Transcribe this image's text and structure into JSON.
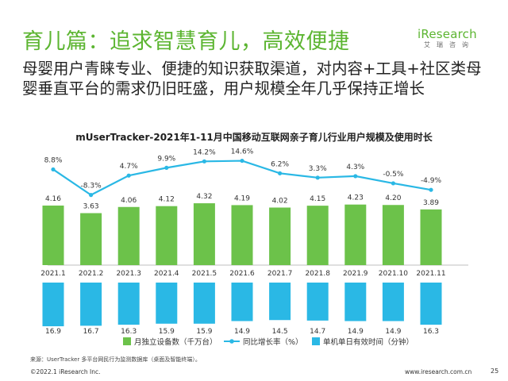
{
  "header": {
    "title": "育儿篇：追求智慧育儿，高效便捷",
    "subtitle": "母婴用户青睐专业、便捷的知识获取渠道，对内容+工具+社区类母婴垂直平台的需求仍旧旺盛，用户规模全年几乎保持正增长"
  },
  "logo": {
    "brand": "iResearch",
    "sub": "艾瑞咨询"
  },
  "chart_data": {
    "type": "bar",
    "title": "mUserTracker-2021年1-11月中国移动互联网亲子育儿行业用户规模及使用时长",
    "categories": [
      "2021.1",
      "2021.2",
      "2021.3",
      "2021.4",
      "2021.5",
      "2021.6",
      "2021.7",
      "2021.8",
      "2021.9",
      "2021.10",
      "2021.11"
    ],
    "series": [
      {
        "name": "月独立设备数（千万台）",
        "type": "bar",
        "color": "#6cc24a",
        "values": [
          4.16,
          3.63,
          4.06,
          4.12,
          4.32,
          4.19,
          4.02,
          4.15,
          4.23,
          4.2,
          3.89
        ],
        "labels": [
          "4.16",
          "3.63",
          "4.06",
          "4.12",
          "4.32",
          "4.19",
          "4.02",
          "4.15",
          "4.23",
          "4.20",
          "3.89"
        ]
      },
      {
        "name": "同比增长率（%）",
        "type": "line",
        "color": "#2ab8e5",
        "values": [
          8.8,
          -8.3,
          4.7,
          9.9,
          14.2,
          14.6,
          6.2,
          3.3,
          4.3,
          -0.5,
          -4.9
        ],
        "labels": [
          "8.8%",
          "-8.3%",
          "4.7%",
          "9.9%",
          "14.2%",
          "14.6%",
          "6.2%",
          "3.3%",
          "4.3%",
          "-0.5%",
          "-4.9%"
        ]
      },
      {
        "name": "单机单日有效时间（分钟）",
        "type": "bar",
        "color": "#2ab8e5",
        "values": [
          16.9,
          16.7,
          16.3,
          15.9,
          15.9,
          14.9,
          14.5,
          14.7,
          14.9,
          14.9,
          16.3
        ],
        "labels": [
          "16.9",
          "16.7",
          "16.3",
          "15.9",
          "15.9",
          "14.9",
          "14.5",
          "14.7",
          "14.9",
          "14.9",
          "16.3"
        ]
      }
    ],
    "legend_position": "bottom",
    "grid": false
  },
  "footer": {
    "source": "来源：UserTracker 多平台网民行为监测数据库（桌面及智能终端）。",
    "copyright": "©2022.1 iResearch Inc.",
    "url": "www.iresearch.com.cn",
    "page": "25"
  }
}
